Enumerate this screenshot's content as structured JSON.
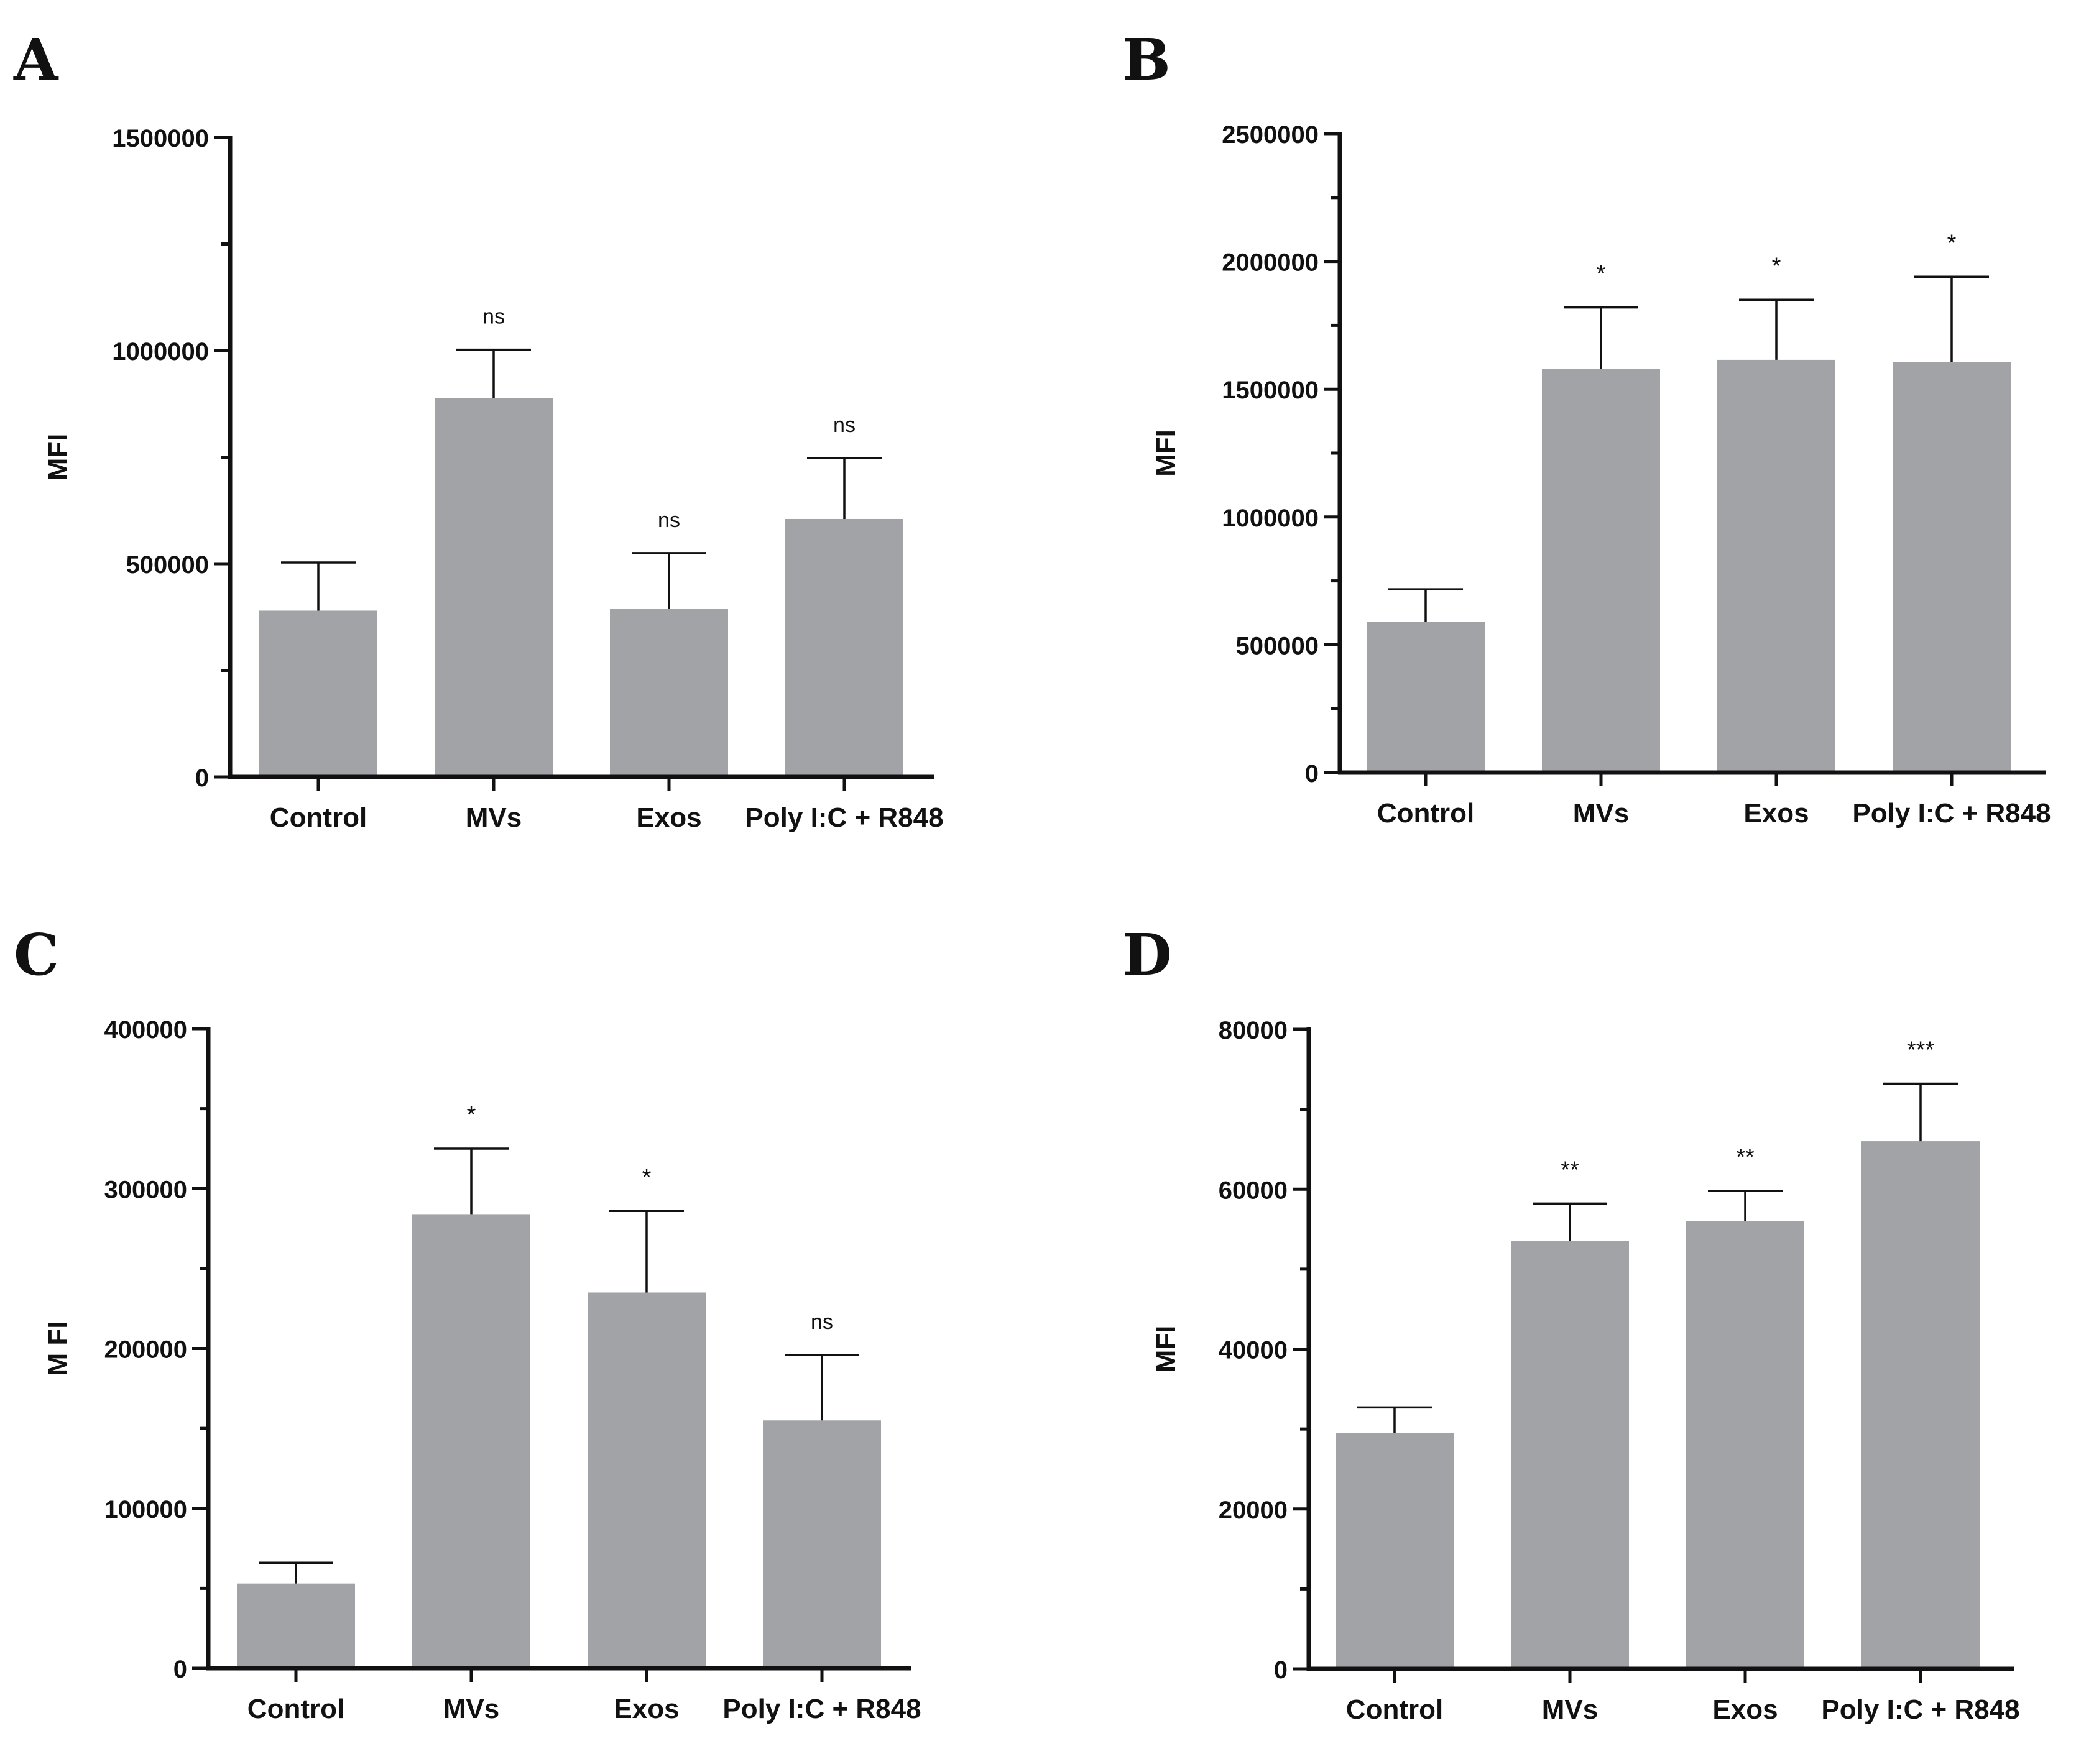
{
  "style": {
    "bar_color": "#a2a3a6",
    "axis_color": "#111111"
  },
  "chart_data": [
    {
      "panel": "A",
      "type": "bar",
      "categories": [
        "Control",
        "MVs",
        "Exos",
        "Poly I:C + R848"
      ],
      "values": [
        390000,
        888000,
        395000,
        605000
      ],
      "errors": [
        113000,
        114000,
        130000,
        143000
      ],
      "significance": [
        "",
        "ns",
        "ns",
        "ns"
      ],
      "ylabel": "MFI",
      "ylim": [
        0,
        1500000
      ],
      "yticks": [
        0,
        500000,
        1000000,
        1500000
      ],
      "ytick_labels": [
        "0",
        "500000",
        "1000000",
        "1500000"
      ],
      "minor_step": 250000
    },
    {
      "panel": "B",
      "type": "bar",
      "categories": [
        "Control",
        "MVs",
        "Exos",
        "Poly I:C + R848"
      ],
      "values": [
        590000,
        1580000,
        1615000,
        1605000
      ],
      "errors": [
        127000,
        240000,
        235000,
        335000
      ],
      "significance": [
        "",
        "*",
        "*",
        "*"
      ],
      "ylabel": "MFI",
      "ylim": [
        0,
        2500000
      ],
      "yticks": [
        0,
        500000,
        1000000,
        1500000,
        2000000,
        2500000
      ],
      "ytick_labels": [
        "0",
        "500000",
        "1000000",
        "1500000",
        "2000000",
        "2500000"
      ],
      "minor_step": 250000
    },
    {
      "panel": "C",
      "type": "bar",
      "categories": [
        "Control",
        "MVs",
        "Exos",
        "Poly I:C + R848"
      ],
      "values": [
        53000,
        284000,
        235000,
        155000
      ],
      "errors": [
        13000,
        41000,
        51000,
        41000
      ],
      "significance": [
        "",
        "*",
        "*",
        "ns"
      ],
      "ylabel": "M FI",
      "ylim": [
        0,
        400000
      ],
      "yticks": [
        0,
        100000,
        200000,
        300000,
        400000
      ],
      "ytick_labels": [
        "0",
        "100000",
        "200000",
        "300000",
        "400000"
      ],
      "minor_step": 50000
    },
    {
      "panel": "D",
      "type": "bar",
      "categories": [
        "Control",
        "MVs",
        "Exos",
        "Poly I:C + R848"
      ],
      "values": [
        29500,
        53500,
        56000,
        66000
      ],
      "errors": [
        3200,
        4700,
        3800,
        7200
      ],
      "significance": [
        "",
        "**",
        "**",
        "***"
      ],
      "ylabel": "MFI",
      "ylim": [
        0,
        80000
      ],
      "yticks": [
        0,
        20000,
        40000,
        60000,
        80000
      ],
      "ytick_labels": [
        "0",
        "20000",
        "40000",
        "60000",
        "80000"
      ],
      "minor_step": 10000
    }
  ]
}
